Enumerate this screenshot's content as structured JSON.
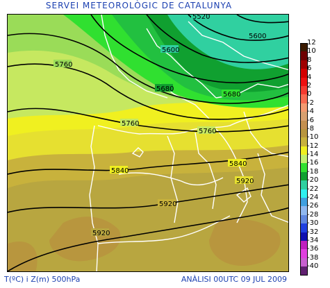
{
  "header": {
    "title": "SERVEI METEOROLÒGIC DE CATALUNYA"
  },
  "footer": {
    "variable": "T(ºC) i Z(m) 500hPa",
    "analysis": "ANÀLISI 00UTC 09 JUL 2009"
  },
  "map": {
    "contour_labels": [
      "5520",
      "5600",
      "5600",
      "5680",
      "5680",
      "5760",
      "5760",
      "5760",
      "5840",
      "5840",
      "5920",
      "5920",
      "5920"
    ]
  },
  "legend": {
    "items": [
      {
        "label": "12",
        "color": "#3a1a00"
      },
      {
        "label": "10",
        "color": "#6e0000"
      },
      {
        "label": "8",
        "color": "#a00000"
      },
      {
        "label": "6",
        "color": "#d40000"
      },
      {
        "label": "4",
        "color": "#ee1010"
      },
      {
        "label": "2",
        "color": "#f53a30"
      },
      {
        "label": "0",
        "color": "#f86a50"
      },
      {
        "label": "-2",
        "color": "#f49a70"
      },
      {
        "label": "-4",
        "color": "#d8a070"
      },
      {
        "label": "-6",
        "color": "#c49050"
      },
      {
        "label": "-8",
        "color": "#b8963e"
      },
      {
        "label": "-10",
        "color": "#c8b23c"
      },
      {
        "label": "-12",
        "color": "#f0f020"
      },
      {
        "label": "-14",
        "color": "#c0f070"
      },
      {
        "label": "-16",
        "color": "#30e030"
      },
      {
        "label": "-18",
        "color": "#10a030"
      },
      {
        "label": "-20",
        "color": "#30d0a0"
      },
      {
        "label": "-22",
        "color": "#30f0f0"
      },
      {
        "label": "-24",
        "color": "#40a0e0"
      },
      {
        "label": "-26",
        "color": "#90b8f0"
      },
      {
        "label": "-28",
        "color": "#6088e0"
      },
      {
        "label": "-30",
        "color": "#2040e0"
      },
      {
        "label": "-32",
        "color": "#1010b0"
      },
      {
        "label": "-34",
        "color": "#c020c0"
      },
      {
        "label": "-36",
        "color": "#e040e0"
      },
      {
        "label": "-38",
        "color": "#c860d0"
      },
      {
        "label": "-40",
        "color": "#602070"
      }
    ]
  }
}
